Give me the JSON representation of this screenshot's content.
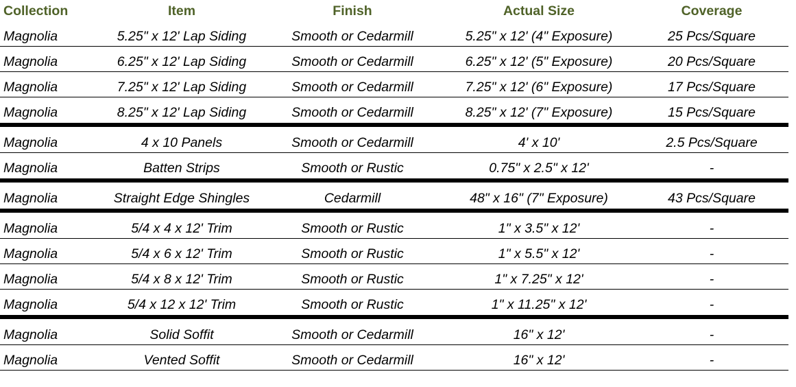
{
  "table": {
    "header": [
      "Collection",
      "Item",
      "Finish",
      "Actual Size",
      "Coverage"
    ],
    "groups": [
      [
        [
          "Magnolia",
          "5.25\" x 12' Lap Siding",
          "Smooth or Cedarmill",
          "5.25\" x 12' (4\" Exposure)",
          "25 Pcs/Square"
        ],
        [
          "Magnolia",
          "6.25\" x 12' Lap Siding",
          "Smooth or Cedarmill",
          "6.25\" x 12' (5\" Exposure)",
          "20 Pcs/Square"
        ],
        [
          "Magnolia",
          "7.25\" x 12' Lap Siding",
          "Smooth or Cedarmill",
          "7.25\" x 12' (6\" Exposure)",
          "17 Pcs/Square"
        ],
        [
          "Magnolia",
          "8.25\" x 12' Lap Siding",
          "Smooth or Cedarmill",
          "8.25\" x 12' (7\" Exposure)",
          "15 Pcs/Square"
        ]
      ],
      [
        [
          "Magnolia",
          "4 x 10 Panels",
          "Smooth or Cedarmill",
          "4' x 10'",
          "2.5 Pcs/Square"
        ],
        [
          "Magnolia",
          "Batten Strips",
          "Smooth or Rustic",
          "0.75\" x 2.5\" x 12'",
          "-"
        ]
      ],
      [
        [
          "Magnolia",
          "Straight Edge Shingles",
          "Cedarmill",
          "48\" x 16\" (7\" Exposure)",
          "43 Pcs/Square"
        ]
      ],
      [
        [
          "Magnolia",
          "5/4 x 4 x 12' Trim",
          "Smooth or Rustic",
          "1\" x 3.5\" x 12'",
          "-"
        ],
        [
          "Magnolia",
          "5/4 x 6 x 12' Trim",
          "Smooth or Rustic",
          "1\" x 5.5\" x 12'",
          "-"
        ],
        [
          "Magnolia",
          "5/4 x 8 x 12' Trim",
          "Smooth or Rustic",
          "1\" x 7.25\" x 12'",
          "-"
        ],
        [
          "Magnolia",
          "5/4 x 12 x 12' Trim",
          "Smooth or Rustic",
          "1\" x 11.25\" x 12'",
          "-"
        ]
      ],
      [
        [
          "Magnolia",
          "Solid Soffit",
          "Smooth or Cedarmill",
          "16\" x 12'",
          "-"
        ],
        [
          "Magnolia",
          "Vented Soffit",
          "Smooth or Cedarmill",
          "16\" x 12'",
          "-"
        ]
      ]
    ]
  }
}
